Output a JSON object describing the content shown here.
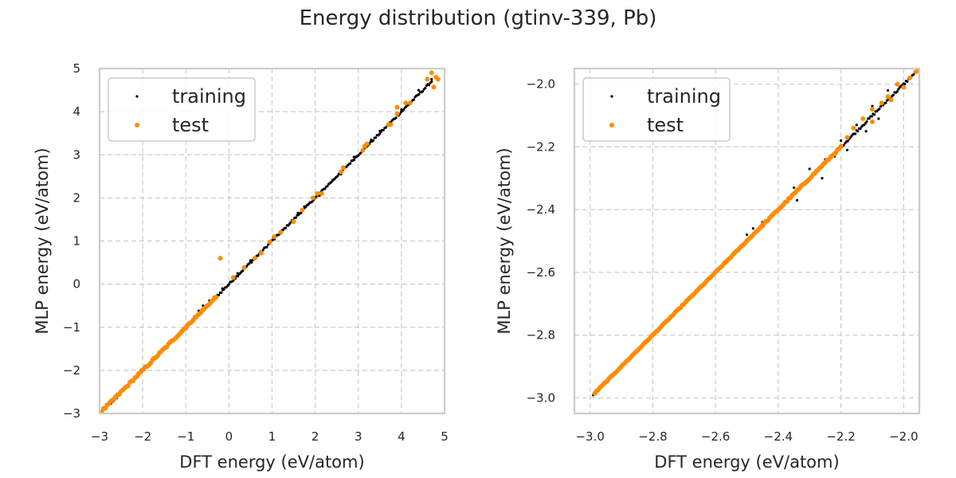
{
  "figure": {
    "title": "Energy distribution (gtinv-339, Pb)"
  },
  "colors": {
    "training": "#000000",
    "test": "#ff8c00",
    "grid": "#cccccc",
    "frame": "#cccccc",
    "text": "#262626"
  },
  "chart_data": [
    {
      "type": "scatter",
      "xlabel": "DFT energy (eV/atom)",
      "ylabel": "MLP energy (eV/atom)",
      "xlim": [
        -3,
        5
      ],
      "ylim": [
        -3,
        5
      ],
      "xticks": [
        -3,
        -2,
        -1,
        0,
        1,
        2,
        3,
        4,
        5
      ],
      "yticks": [
        -3,
        -2,
        -1,
        0,
        1,
        2,
        3,
        4,
        5
      ],
      "xtick_labels": [
        "−3",
        "−2",
        "−1",
        "0",
        "1",
        "2",
        "3",
        "4",
        "5"
      ],
      "ytick_labels": [
        "−3",
        "−2",
        "−1",
        "0",
        "1",
        "2",
        "3",
        "4",
        "5"
      ],
      "grid": true,
      "legend_position": "upper-left",
      "series": [
        {
          "name": "training",
          "segments": [
            [
              -2.98,
              -2.98,
              -2.6,
              -2.6,
              0.11
            ],
            [
              -1.0,
              -1.0,
              0.0,
              0.0,
              0.055
            ],
            [
              0.0,
              0.0,
              1.2,
              1.2,
              0.045
            ],
            [
              1.2,
              1.2,
              2.4,
              2.4,
              0.04
            ],
            [
              2.4,
              2.4,
              3.7,
              3.7,
              0.04
            ],
            [
              3.7,
              3.7,
              4.7,
              4.7,
              0.05
            ]
          ],
          "points": [
            [
              -0.45,
              -0.38
            ],
            [
              -0.6,
              -0.5
            ],
            [
              -0.35,
              -0.3
            ],
            [
              -0.8,
              -0.75
            ],
            [
              -0.7,
              -0.62
            ],
            [
              0.5,
              0.55
            ],
            [
              0.95,
              1.0
            ],
            [
              1.6,
              1.65
            ],
            [
              2.1,
              2.05
            ],
            [
              2.9,
              2.95
            ],
            [
              3.5,
              3.55
            ],
            [
              4.0,
              4.05
            ],
            [
              4.4,
              4.5
            ],
            [
              4.7,
              4.75
            ],
            [
              1.75,
              1.8
            ],
            [
              2.6,
              2.55
            ],
            [
              3.3,
              3.35
            ],
            [
              0.2,
              0.25
            ],
            [
              -0.15,
              -0.1
            ]
          ]
        },
        {
          "name": "test",
          "segments": [
            [
              -2.95,
              -2.95,
              -1.0,
              -1.0,
              0.05
            ],
            [
              -1.0,
              -1.0,
              -0.3,
              -0.3,
              0.03
            ]
          ],
          "points": [
            [
              -0.2,
              0.6
            ],
            [
              0.1,
              0.15
            ],
            [
              0.35,
              0.38
            ],
            [
              0.6,
              0.6
            ],
            [
              0.75,
              0.72
            ],
            [
              0.95,
              0.98
            ],
            [
              1.05,
              1.1
            ],
            [
              1.2,
              1.2
            ],
            [
              1.5,
              1.45
            ],
            [
              1.7,
              1.72
            ],
            [
              1.95,
              2.0
            ],
            [
              2.05,
              2.1
            ],
            [
              2.15,
              2.1
            ],
            [
              2.6,
              2.6
            ],
            [
              2.65,
              2.7
            ],
            [
              3.1,
              3.1
            ],
            [
              3.15,
              3.2
            ],
            [
              3.2,
              3.25
            ],
            [
              3.7,
              3.7
            ],
            [
              3.75,
              3.7
            ],
            [
              3.9,
              3.95
            ],
            [
              3.9,
              4.1
            ],
            [
              4.1,
              4.2
            ],
            [
              4.2,
              4.2
            ],
            [
              4.6,
              4.75
            ],
            [
              4.7,
              4.9
            ],
            [
              4.8,
              4.8
            ],
            [
              4.75,
              4.57
            ],
            [
              4.85,
              4.75
            ]
          ]
        }
      ]
    },
    {
      "type": "scatter",
      "xlabel": "DFT energy (eV/atom)",
      "ylabel": "MLP energy (eV/atom)",
      "xlim": [
        -3.05,
        -1.95
      ],
      "ylim": [
        -3.05,
        -1.95
      ],
      "xticks": [
        -3.0,
        -2.8,
        -2.6,
        -2.4,
        -2.2,
        -2.0
      ],
      "yticks": [
        -3.0,
        -2.8,
        -2.6,
        -2.4,
        -2.2,
        -2.0
      ],
      "xtick_labels": [
        "−3.0",
        "−2.8",
        "−2.6",
        "−2.4",
        "−2.2",
        "−2.0"
      ],
      "ytick_labels": [
        "−3.0",
        "−2.8",
        "−2.6",
        "−2.4",
        "−2.2",
        "−2.0"
      ],
      "grid": true,
      "legend_position": "upper-left",
      "series": [
        {
          "name": "training",
          "segments": [
            [
              -2.99,
              -2.99,
              -2.3,
              -2.3,
              0.003
            ],
            [
              -2.3,
              -2.3,
              -1.96,
              -1.96,
              0.008
            ]
          ],
          "points": [
            [
              -2.5,
              -2.48
            ],
            [
              -2.48,
              -2.46
            ],
            [
              -2.45,
              -2.44
            ],
            [
              -2.35,
              -2.33
            ],
            [
              -2.3,
              -2.27
            ],
            [
              -2.25,
              -2.24
            ],
            [
              -2.2,
              -2.18
            ],
            [
              -2.15,
              -2.13
            ],
            [
              -2.1,
              -2.07
            ],
            [
              -2.05,
              -2.02
            ],
            [
              -2.02,
              -2.0
            ],
            [
              -2.0,
              -2.01
            ],
            [
              -2.12,
              -2.15
            ],
            [
              -2.08,
              -2.11
            ],
            [
              -2.18,
              -2.21
            ],
            [
              -2.26,
              -2.3
            ],
            [
              -2.34,
              -2.37
            ],
            [
              -2.22,
              -2.23
            ]
          ]
        },
        {
          "name": "test",
          "segments": [
            [
              -2.985,
              -2.985,
              -2.45,
              -2.45,
              0.003
            ],
            [
              -2.45,
              -2.45,
              -2.2,
              -2.2,
              0.005
            ]
          ],
          "points": [
            [
              -2.18,
              -2.17
            ],
            [
              -2.16,
              -2.14
            ],
            [
              -2.13,
              -2.11
            ],
            [
              -2.1,
              -2.08
            ],
            [
              -2.07,
              -2.06
            ],
            [
              -2.05,
              -2.04
            ],
            [
              -2.02,
              -2.0
            ],
            [
              -2.0,
              -2.01
            ],
            [
              -1.98,
              -1.98
            ],
            [
              -1.96,
              -1.96
            ],
            [
              -1.955,
              -1.95
            ],
            [
              -2.04,
              -2.05
            ],
            [
              -2.1,
              -2.12
            ]
          ]
        }
      ]
    }
  ]
}
